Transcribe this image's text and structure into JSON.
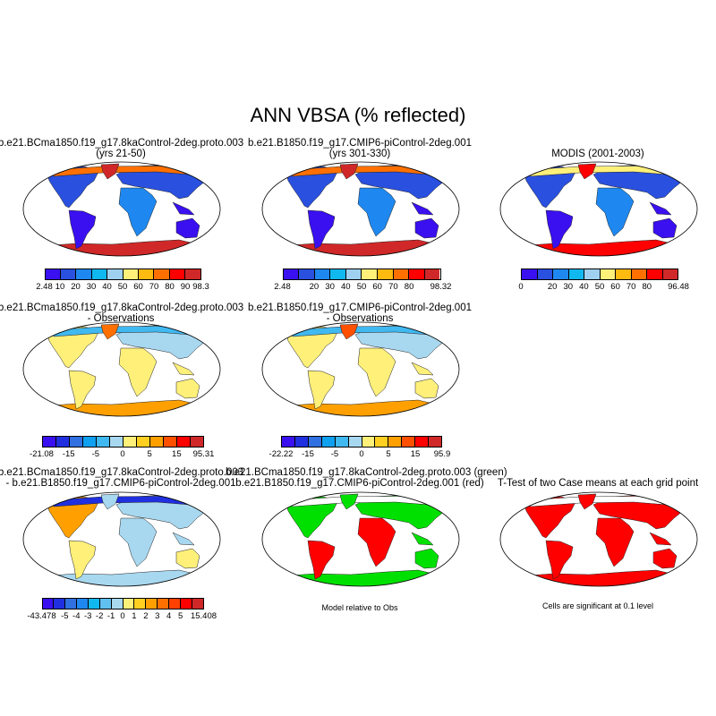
{
  "title": "ANN VBSA (% reflected)",
  "panels": [
    {
      "id": "case1-mean",
      "title": [
        "b.e21.BCma1850.f19_g17.8kaControl-2deg.proto.003",
        "(yrs 21-50)"
      ],
      "colorbar": {
        "colors": [
          "#3a10f0",
          "#2a50e0",
          "#1e88f0",
          "#10b8f0",
          "#a0d0f0",
          "#fff07a",
          "#ffbb10",
          "#ff7000",
          "#ff0000",
          "#d02828"
        ],
        "labels": [
          "2.48",
          "10",
          "20",
          "30",
          "40",
          "50",
          "60",
          "70",
          "80",
          "90",
          "98.3"
        ]
      },
      "land": {
        "na": "#2a50e0",
        "arctic": "#ff7000",
        "greenland": "#d02828",
        "sa": "#3a10f0",
        "eurasia": "#2a50e0",
        "africa": "#1e88f0",
        "aus": "#3a10f0",
        "islands": "#3a10f0",
        "ant": "#d02828"
      }
    },
    {
      "id": "case2-mean",
      "title": [
        "b.e21.B1850.f19_g17.CMIP6-piControl-2deg.001",
        "(yrs 301-330)"
      ],
      "colorbar": {
        "colors": [
          "#3a10f0",
          "#2a50e0",
          "#1e88f0",
          "#10b8f0",
          "#a0d0f0",
          "#fff07a",
          "#ffbb10",
          "#ff7000",
          "#ff0000",
          "#d02828"
        ],
        "labels": [
          "2.48",
          "",
          "20",
          "30",
          "40",
          "50",
          "60",
          "70",
          "80",
          "",
          "98.32"
        ]
      },
      "land": {
        "na": "#2a50e0",
        "arctic": "#ff7000",
        "greenland": "#d02828",
        "sa": "#3a10f0",
        "eurasia": "#2a50e0",
        "africa": "#1e88f0",
        "aus": "#3a10f0",
        "islands": "#3a10f0",
        "ant": "#d02828"
      }
    },
    {
      "id": "obs-mean",
      "title": [
        "MODIS (2001-2003)"
      ],
      "colorbar": {
        "colors": [
          "#3a10f0",
          "#2a50e0",
          "#1e88f0",
          "#10b8f0",
          "#a0d0f0",
          "#fff07a",
          "#ffbb10",
          "#ff7000",
          "#ff0000",
          "#d02828"
        ],
        "labels": [
          "0",
          "",
          "20",
          "30",
          "40",
          "50",
          "60",
          "70",
          "80",
          "",
          "96.48"
        ]
      },
      "land": {
        "na": "#2a50e0",
        "arctic": "#fff07a",
        "greenland": "#ff0000",
        "sa": "#3a10f0",
        "eurasia": "#2a50e0",
        "africa": "#1e88f0",
        "aus": "#3a10f0",
        "islands": "#3a10f0",
        "ant": "#ff0000"
      }
    },
    {
      "id": "case1-minus-obs",
      "title": [
        "b.e21.BCma1850.f19_g17.8kaControl-2deg.proto.003",
        "- Observations"
      ],
      "colorbar": {
        "colors": [
          "#3a10f0",
          "#2030e0",
          "#3070e0",
          "#10a0f0",
          "#40b8f0",
          "#a8d8f0",
          "#fff07a",
          "#ffd020",
          "#ffa000",
          "#ff5000",
          "#ff0000",
          "#d02828"
        ],
        "labels": [
          "-21.08",
          "",
          "-15",
          "",
          "-5",
          "",
          "0",
          "",
          "5",
          "",
          "15",
          "",
          "95.31"
        ]
      },
      "land": {
        "na": "#fff07a",
        "arctic": "#40b8f0",
        "greenland": "#ff7000",
        "sa": "#fff07a",
        "eurasia": "#a8d8f0",
        "africa": "#fff07a",
        "aus": "#fff07a",
        "islands": "#fff07a",
        "ant": "#ffa000"
      }
    },
    {
      "id": "case2-minus-obs",
      "title": [
        "b.e21.B1850.f19_g17.CMIP6-piControl-2deg.001",
        "- Observations"
      ],
      "colorbar": {
        "colors": [
          "#3a10f0",
          "#2030e0",
          "#3070e0",
          "#10a0f0",
          "#40b8f0",
          "#a8d8f0",
          "#fff07a",
          "#ffd020",
          "#ffa000",
          "#ff5000",
          "#ff0000",
          "#d02828"
        ],
        "labels": [
          "-22.22",
          "",
          "-15",
          "",
          "-5",
          "",
          "0",
          "",
          "5",
          "",
          "15",
          "",
          "95.9"
        ]
      },
      "land": {
        "na": "#fff07a",
        "arctic": "#40b8f0",
        "greenland": "#ff5000",
        "sa": "#fff07a",
        "eurasia": "#a8d8f0",
        "africa": "#fff07a",
        "aus": "#fff07a",
        "islands": "#fff07a",
        "ant": "#ffa000"
      }
    },
    {
      "id": "case1-minus-case2",
      "title": [
        "b.e21.BCma1850.f19_g17.8kaControl-2deg.proto.003",
        "- b.e21.B1850.f19_g17.CMIP6-piControl-2deg.001"
      ],
      "colorbar": {
        "colors": [
          "#3a10f0",
          "#2030e0",
          "#3070e0",
          "#1e88f0",
          "#10b8f0",
          "#60c0f0",
          "#a8d8f0",
          "#fff07a",
          "#ffd020",
          "#ffa000",
          "#ff7000",
          "#ff4000",
          "#ff0000",
          "#d02828"
        ],
        "labels": [
          "-43.478",
          "",
          "-5",
          "-4",
          "-3",
          "-2",
          "-1",
          "0",
          "1",
          "2",
          "3",
          "4",
          "5",
          "",
          "15.408"
        ]
      },
      "land": {
        "na": "#ffa000",
        "arctic": "#2030e0",
        "greenland": "#a8d8f0",
        "sa": "#fff07a",
        "eurasia": "#a8d8f0",
        "africa": "#a8d8f0",
        "aus": "#fff07a",
        "islands": "#a8d8f0",
        "ant": "#a8d8f0"
      }
    },
    {
      "id": "model-relative-to-obs",
      "title": [
        "b.e21.BCma1850.f19_g17.8kaControl-2deg.proto.003 (green)",
        "b.e21.B1850.f19_g17.CMIP6-piControl-2deg.001 (red)"
      ],
      "note": "Model relative to Obs",
      "land": {
        "na": "#00e000",
        "arctic": "#ffffff",
        "greenland": "#00e000",
        "sa": "#ff0000",
        "eurasia": "#00e000",
        "africa": "#ff0000",
        "aus": "#00e000",
        "islands": "#00e000",
        "ant": "#00e000"
      }
    },
    {
      "id": "t-test",
      "title": [
        "T-Test of two Case means at each grid point"
      ],
      "note": "Cells are significant at 0.1 level",
      "land": {
        "na": "#ff0000",
        "arctic": "#ffffff",
        "greenland": "#ff0000",
        "sa": "#ff0000",
        "eurasia": "#ff0000",
        "africa": "#ff0000",
        "aus": "#ff0000",
        "islands": "#ff0000",
        "ant": "#ff0000"
      }
    }
  ]
}
